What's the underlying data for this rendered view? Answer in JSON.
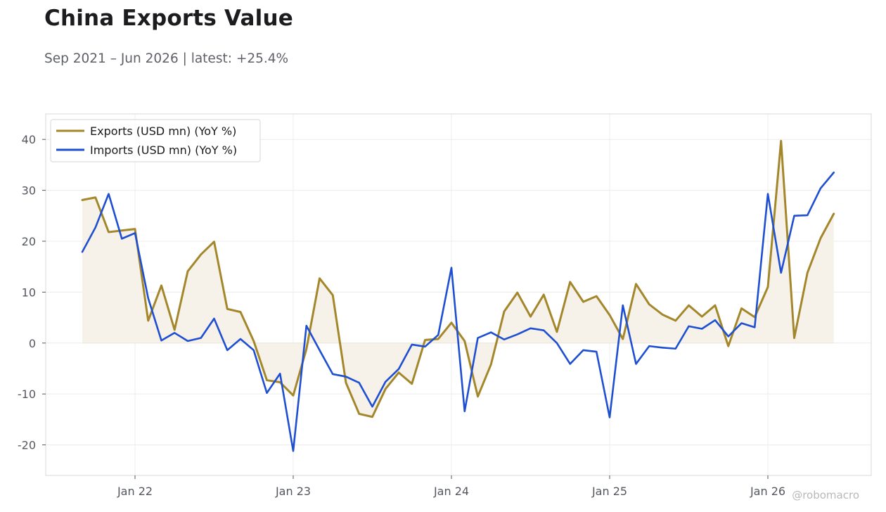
{
  "header": {
    "title": "China Exports Value",
    "subtitle": "Sep 2021 – Jun 2026 | latest: +25.4%"
  },
  "watermark": "@robomacro",
  "colors": {
    "exports": "#a4872b",
    "imports": "#1e4fd2",
    "fill": "#f6f2ea",
    "grid": "#ececec",
    "frame": "#d9d9d9"
  },
  "chart_data": {
    "type": "line",
    "x_start": "2021-09",
    "x_labels": [
      "Jan 22",
      "Jan 23",
      "Jan 24",
      "Jan 25",
      "Jan 26"
    ],
    "ylim": [
      -26,
      45
    ],
    "yticks": [
      -20,
      -10,
      0,
      10,
      20,
      30,
      40
    ],
    "ytick_labels": [
      "-20",
      "-10",
      "0",
      "10",
      "20",
      "30",
      "40"
    ],
    "grid": true,
    "legend_position": "top-left",
    "series": [
      {
        "name": "Exports (USD mn) (YoY %)",
        "color": "#a4872b",
        "fill_to_zero": true,
        "values": [
          28.1,
          28.6,
          21.8,
          22.1,
          22.4,
          4.4,
          11.3,
          2.6,
          14.1,
          17.4,
          19.9,
          6.7,
          6.1,
          0.4,
          -7.3,
          -7.7,
          -10.3,
          -1.2,
          12.7,
          9.4,
          -7.8,
          -13.9,
          -14.5,
          -9.0,
          -5.8,
          -8.0,
          0.6,
          0.8,
          4.0,
          0.4,
          -10.5,
          -4.2,
          6.2,
          9.9,
          5.2,
          9.5,
          2.2,
          12.0,
          8.1,
          9.2,
          5.5,
          0.8,
          11.6,
          7.6,
          5.6,
          4.4,
          7.4,
          5.2,
          7.4,
          -0.6,
          6.8,
          5.1,
          11.0,
          39.7,
          1.0,
          13.8,
          20.6,
          25.4
        ]
      },
      {
        "name": "Imports (USD mn) (YoY %)",
        "color": "#1e4fd2",
        "fill_to_zero": false,
        "values": [
          17.9,
          22.7,
          29.3,
          20.5,
          21.6,
          8.8,
          0.5,
          2.0,
          0.4,
          1.0,
          4.8,
          -1.4,
          0.8,
          -1.4,
          -9.8,
          -6.0,
          -21.2,
          3.4,
          -1.4,
          -6.1,
          -6.6,
          -7.8,
          -12.5,
          -7.6,
          -5.1,
          -0.3,
          -0.7,
          1.6,
          14.8,
          -13.4,
          1.0,
          2.1,
          0.7,
          1.7,
          2.9,
          2.5,
          0.0,
          -4.1,
          -1.4,
          -1.7,
          -14.6,
          7.4,
          -4.1,
          -0.6,
          -0.9,
          -1.1,
          3.3,
          2.8,
          4.5,
          1.3,
          3.9,
          3.1,
          29.3,
          13.8,
          25.0,
          25.1,
          30.4,
          33.5
        ]
      }
    ]
  }
}
